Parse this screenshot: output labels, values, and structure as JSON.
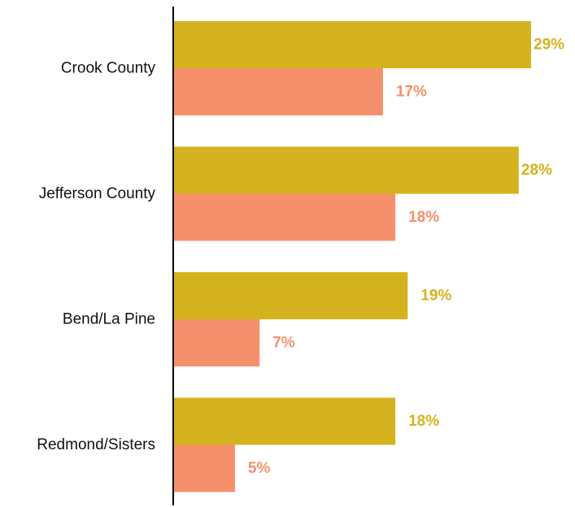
{
  "chart_data": {
    "type": "bar",
    "orientation": "horizontal",
    "categories": [
      "Crook County",
      "Jefferson County",
      "Bend/La Pine",
      "Redmond/Sisters"
    ],
    "series": [
      {
        "color": "#d4b31e",
        "values": [
          29,
          28,
          19,
          18
        ],
        "labels": [
          "29%",
          "28%",
          "19%",
          "18%"
        ]
      },
      {
        "color": "#f6906c",
        "values": [
          17,
          18,
          7,
          5
        ],
        "labels": [
          "17%",
          "18%",
          "7%",
          "5%"
        ]
      }
    ],
    "xlim": [
      0,
      30
    ],
    "grid": false,
    "legend": "none"
  }
}
